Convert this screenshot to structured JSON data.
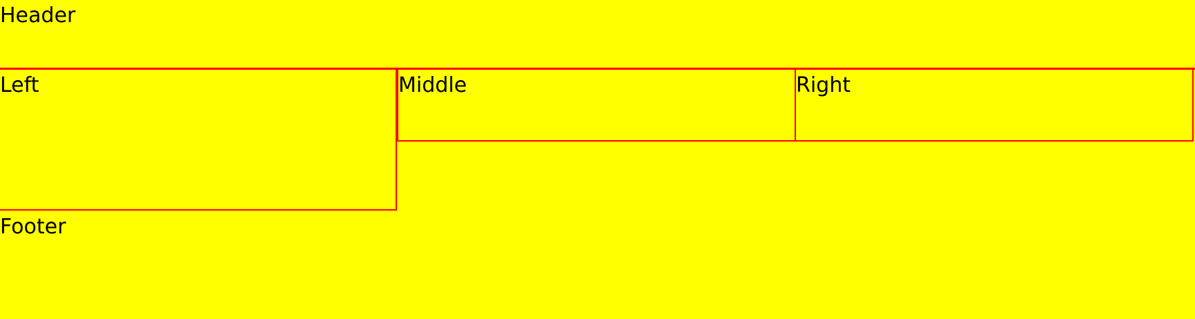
{
  "layout": {
    "header": {
      "label": "Header"
    },
    "columns": [
      {
        "label": "Left"
      },
      {
        "label": "Middle"
      },
      {
        "label": "Right"
      }
    ],
    "footer": {
      "label": "Footer"
    }
  },
  "colors": {
    "background": "#ffff00",
    "border": "#ff0000",
    "text": "#000000"
  }
}
